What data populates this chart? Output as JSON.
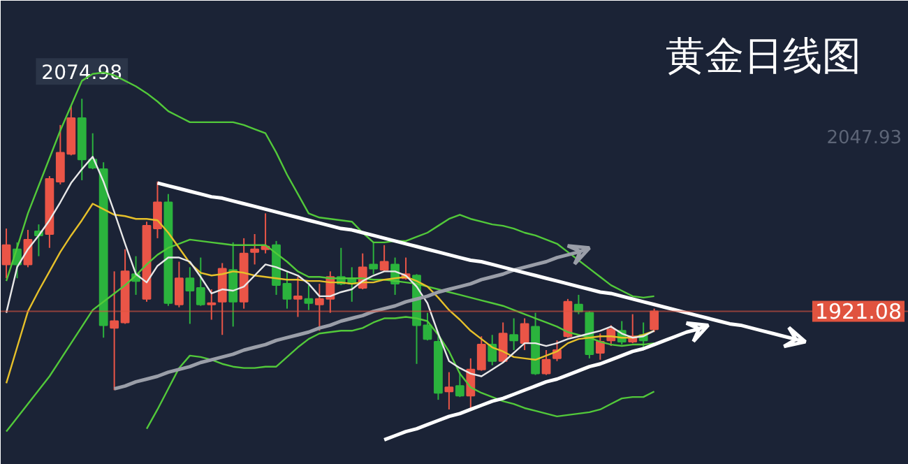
{
  "chart_data": {
    "type": "candlestick",
    "title": "黄金日线图",
    "tick_labels": "y",
    "categories": [
      null,
      null,
      null,
      null,
      null,
      null,
      null,
      null,
      null,
      null,
      null,
      null,
      null,
      null,
      null,
      null,
      null,
      null,
      null,
      null,
      null,
      null,
      null,
      null,
      null,
      null,
      null,
      null,
      null,
      null,
      null,
      null,
      null,
      null,
      null,
      null,
      null,
      null,
      null,
      null,
      null,
      null,
      null,
      null,
      null,
      null,
      null,
      null,
      null,
      null,
      null,
      null,
      null,
      null,
      null,
      null,
      null,
      null,
      null,
      null,
      null,
      null,
      null,
      null,
      null,
      null,
      null,
      null,
      null,
      null,
      null,
      null,
      null,
      null,
      null,
      null
    ],
    "ohlc": [
      [
        1955,
        1981,
        1945,
        1969
      ],
      [
        1966,
        1971,
        1945,
        1955
      ],
      [
        1955,
        1980,
        1953,
        1973
      ],
      [
        1979,
        1984,
        1961,
        1976
      ],
      [
        1977,
        2019,
        1967,
        2017
      ],
      [
        2015,
        2056,
        2013,
        2036
      ],
      [
        2035,
        2070,
        2034,
        2061
      ],
      [
        2061,
        2074.98,
        2016,
        2031
      ],
      [
        2031,
        2050,
        2024,
        2025
      ],
      [
        2024,
        2029,
        1902,
        1911
      ],
      [
        1909,
        1950,
        1864,
        1914
      ],
      [
        1913,
        1966,
        1912,
        1950
      ],
      [
        1948,
        1961,
        1933,
        1943
      ],
      [
        1930,
        1986,
        1928,
        1983
      ],
      [
        1981,
        2015,
        1974,
        2000
      ],
      [
        2000,
        2006,
        1925,
        1927
      ],
      [
        1926,
        1957,
        1924,
        1945
      ],
      [
        1945,
        1953,
        1912,
        1936
      ],
      [
        1938,
        1960,
        1925,
        1926
      ],
      [
        1926,
        1937,
        1915,
        1927
      ],
      [
        1928,
        1956,
        1904,
        1952
      ],
      [
        1951,
        1971,
        1910,
        1928
      ],
      [
        1928,
        1974,
        1923,
        1963
      ],
      [
        1964,
        1977,
        1955,
        1966
      ],
      [
        1966,
        1992,
        1963,
        1968
      ],
      [
        1969,
        1972,
        1933,
        1940
      ],
      [
        1941,
        1950,
        1923,
        1930
      ],
      [
        1930,
        1946,
        1917,
        1932
      ],
      [
        1930,
        1940,
        1922,
        1927
      ],
      [
        1926,
        1941,
        1907,
        1930
      ],
      [
        1930,
        1950,
        1920,
        1946
      ],
      [
        1946,
        1967,
        1940,
        1941
      ],
      [
        1945,
        1953,
        1928,
        1941
      ],
      [
        1938,
        1963,
        1937,
        1953
      ],
      [
        1955,
        1971,
        1948,
        1952
      ],
      [
        1951,
        1969,
        1950,
        1957
      ],
      [
        1955,
        1960,
        1933,
        1941
      ],
      [
        1945,
        1960,
        1944,
        1948
      ],
      [
        1947,
        1948,
        1883,
        1911
      ],
      [
        1911,
        1920,
        1900,
        1901
      ],
      [
        1899,
        1906,
        1857,
        1862
      ],
      [
        1863,
        1877,
        1850,
        1866
      ],
      [
        1867,
        1877,
        1859,
        1860
      ],
      [
        1860,
        1887,
        1850,
        1879
      ],
      [
        1879,
        1903,
        1878,
        1897
      ],
      [
        1897,
        1904,
        1882,
        1885
      ],
      [
        1885,
        1913,
        1884,
        1905
      ],
      [
        1904,
        1916,
        1893,
        1900
      ],
      [
        1898,
        1916,
        1893,
        1912
      ],
      [
        1910,
        1920,
        1875,
        1876
      ],
      [
        1876,
        1893,
        1875,
        1886
      ],
      [
        1887,
        1900,
        1885,
        1893
      ],
      [
        1903,
        1930,
        1902,
        1928
      ],
      [
        1926,
        1933,
        1919,
        1921
      ],
      [
        1920,
        1921,
        1887,
        1890
      ],
      [
        1891,
        1905,
        1886,
        1899
      ],
      [
        1900,
        1911,
        1896,
        1908
      ],
      [
        1907,
        1914,
        1897,
        1899
      ],
      [
        1899,
        1919,
        1898,
        1903
      ],
      [
        1904,
        1913,
        1895,
        1900
      ],
      [
        1908,
        1923,
        1906,
        1921.08
      ],
      null,
      null,
      null,
      null,
      null,
      null,
      null,
      null,
      null,
      null,
      null,
      null,
      null,
      null,
      null
    ],
    "colors": [
      "#ea5547",
      "#2bb33d",
      "#ea5547",
      "#2bb33d",
      "#ea5547",
      "#ea5547",
      "#ea5547",
      "#2bb33d",
      "#2bb33d",
      "#2bb33d",
      "#ea5547",
      "#ea5547",
      "#2bb33d",
      "#ea5547",
      "#ea5547",
      "#2bb33d",
      "#ea5547",
      "#2bb33d",
      "#2bb33d",
      "#ea5547",
      "#ea5547",
      "#2bb33d",
      "#ea5547",
      "#ea5547",
      "#ea5547",
      "#2bb33d",
      "#2bb33d",
      "#ea5547",
      "#2bb33d",
      "#ea5547",
      "#ea5547",
      "#2bb33d",
      "#2bb33d",
      "#ea5547",
      "#2bb33d",
      "#ea5547",
      "#2bb33d",
      "#ea5547",
      "#2bb33d",
      "#2bb33d",
      "#2bb33d",
      "#ea5547",
      "#2bb33d",
      "#ea5547",
      "#ea5547",
      "#2bb33d",
      "#ea5547",
      "#2bb33d",
      "#ea5547",
      "#2bb33d",
      "#ea5547",
      "#ea5547",
      "#ea5547",
      "#2bb33d",
      "#2bb33d",
      "#ea5547",
      "#ea5547",
      "#2bb33d",
      "#ea5547",
      "#2bb33d",
      "#ea5547",
      null,
      null,
      null,
      null,
      null,
      null,
      null,
      null,
      null,
      null,
      null,
      null,
      null,
      null,
      null
    ],
    "ylim": [
      1810,
      2146
    ],
    "yticks": [
      2047.93,
      1921.08
    ],
    "ref_lines": [
      {
        "axis": "y",
        "value": 1921.08,
        "color": "#e0533f"
      }
    ],
    "annotations": [
      {
        "text": "2074.98",
        "y": 2074.98
      }
    ],
    "series": [
      {
        "type": "line",
        "color": "#52c93a",
        "values": [
          1943,
          1967,
          1992,
          2012,
          2032,
          2052,
          2070,
          2088,
          2093,
          2094,
          2092,
          2088,
          2084,
          2079,
          2073,
          2066,
          2062,
          2058,
          2058,
          2058,
          2058,
          2058,
          2056,
          2053,
          2050,
          2036,
          2020,
          2006,
          1992,
          1989,
          1988,
          1987,
          1986,
          1978,
          1971,
          1971,
          1972,
          1972,
          1975,
          1978,
          1983,
          1988,
          1991,
          1988,
          1986,
          1984,
          1983,
          1981,
          1978,
          1976,
          1973,
          1970,
          1964,
          1958,
          1952,
          1946,
          1940,
          1936,
          1932,
          1931,
          1932,
          null,
          null,
          null,
          null,
          null,
          null,
          null,
          null,
          null,
          null,
          null,
          null,
          null,
          null,
          null
        ]
      },
      {
        "type": "line",
        "color": "#52c93a",
        "values": [
          1834,
          1844,
          1854,
          1864,
          1874,
          1886,
          1898,
          1910,
          1922,
          1928,
          1934,
          1940,
          1947,
          1955,
          1962,
          1967,
          1970,
          1973,
          1972,
          1971,
          1970,
          1969,
          1969,
          1969,
          1969,
          1963,
          1957,
          1950,
          1946,
          1946,
          1945,
          1945,
          1945,
          1945,
          1944,
          1944,
          1943,
          1942,
          1941,
          1939,
          1937,
          1935,
          1933,
          1931,
          1929,
          1927,
          1925,
          1922,
          1919,
          1916,
          1913,
          1910,
          1906,
          1904,
          1902,
          1899,
          1897,
          1896,
          1897,
          1897,
          1898,
          null,
          null,
          null,
          null,
          null,
          null,
          null,
          null,
          null,
          null,
          null,
          null,
          null,
          null,
          null
        ]
      },
      {
        "type": "line",
        "color": "#52c93a",
        "values": [
          null,
          null,
          null,
          null,
          null,
          null,
          null,
          null,
          null,
          null,
          null,
          null,
          null,
          1836,
          1850,
          1865,
          1880,
          1889,
          1888,
          1886,
          1883,
          1881,
          1880,
          1880,
          1881,
          1881,
          1888,
          1895,
          1901,
          1905,
          1906,
          1907,
          1907,
          1909,
          1913,
          1916,
          1916,
          1917,
          1916,
          1914,
          1904,
          1892,
          1876,
          1866,
          1862,
          1859,
          1856,
          1854,
          1851,
          1849,
          1847,
          1845,
          1846,
          1847,
          1848,
          1850,
          1854,
          1858,
          1859,
          1859,
          1863,
          null,
          null,
          null,
          null,
          null,
          null,
          null,
          null,
          null,
          null,
          null,
          null,
          null,
          null,
          null
        ]
      },
      {
        "type": "line",
        "color": "#e6c02a",
        "values": [
          1869,
          1895,
          1921,
          1936,
          1950,
          1964,
          1976,
          1987,
          1999,
          1995,
          1991,
          1990,
          1988,
          1988,
          1987,
          1978,
          1967,
          1956,
          1949,
          1947,
          1948,
          1950,
          1949,
          1947,
          1946,
          1945,
          1944,
          1944,
          1943,
          1943,
          1942,
          1942,
          1941,
          1942,
          1942,
          1944,
          1945,
          1946,
          1943,
          1939,
          1931,
          1922,
          1915,
          1907,
          1901,
          1895,
          1892,
          1888,
          1887,
          1886,
          1889,
          1892,
          1898,
          1901,
          1902,
          1903,
          1903,
          1902,
          1902,
          1904,
          1907,
          null,
          null,
          null,
          null,
          null,
          null,
          null,
          null,
          null,
          null,
          null,
          null,
          null,
          null,
          null
        ]
      },
      {
        "type": "line",
        "color": "#e8e8e8",
        "values": [
          1920,
          1953,
          1966,
          1976,
          1987,
          2000,
          2014,
          2024,
          2033,
          2015,
          1993,
          1970,
          1948,
          1942,
          1954,
          1960,
          1960,
          1957,
          1946,
          1934,
          1937,
          1936,
          1939,
          1947,
          1955,
          1953,
          1950,
          1947,
          1941,
          1932,
          1932,
          1935,
          1937,
          1943,
          1947,
          1950,
          1950,
          1947,
          1939,
          1927,
          1905,
          1885,
          1880,
          1876,
          1874,
          1879,
          1884,
          1891,
          1898,
          1898,
          1896,
          1898,
          1901,
          1903,
          1905,
          1907,
          1910,
          1905,
          1902,
          1903,
          1907,
          null,
          null,
          null,
          null,
          null,
          null,
          null,
          null,
          null,
          null,
          null,
          null,
          null,
          null,
          null
        ]
      },
      {
        "type": "line",
        "color": "#9a9ea8",
        "values": [
          null,
          null,
          null,
          null,
          null,
          null,
          null,
          null,
          null,
          null,
          1865,
          1867,
          1870,
          1872,
          1874,
          1877,
          1879,
          1881,
          1884,
          1886,
          1888,
          1890,
          1893,
          1895,
          1897,
          1900,
          1902,
          1904,
          1906,
          1909,
          1911,
          1914,
          1916,
          1918,
          1921,
          1923,
          1925,
          1928,
          1930,
          1932,
          1935,
          1937,
          1939,
          1941,
          1944,
          1946,
          1948,
          1951,
          1953,
          1955,
          1957,
          1960,
          1962,
          1964,
          1967,
          null,
          null,
          null,
          null,
          null,
          null,
          null,
          null,
          null,
          null,
          null,
          null,
          null,
          null,
          null,
          null,
          null,
          null,
          null,
          null,
          null
        ]
      },
      {
        "type": "line",
        "color": "#ffffff",
        "values": [
          null,
          null,
          null,
          null,
          null,
          null,
          null,
          null,
          null,
          null,
          null,
          null,
          null,
          null,
          2014,
          2012,
          2010,
          2008,
          2006,
          2004,
          2003,
          2001,
          1999,
          1997,
          1995,
          1993,
          1991,
          1989,
          1987,
          1985,
          1983,
          1981,
          1980,
          1978,
          1976,
          1974,
          1972,
          1970,
          1968,
          1966,
          1964,
          1962,
          1960,
          1958,
          1957,
          1955,
          1953,
          1951,
          1949,
          1947,
          1945,
          1943,
          1941,
          1939,
          1937,
          1935,
          1934,
          1932,
          1930,
          1928,
          1926,
          1924,
          1922,
          1920,
          1918,
          1916,
          1914,
          1912,
          1911,
          1909,
          1907,
          1905,
          1903,
          1901,
          1899,
          null
        ]
      },
      {
        "type": "line",
        "color": "#ffffff",
        "values": [
          null,
          null,
          null,
          null,
          null,
          null,
          null,
          null,
          null,
          null,
          null,
          null,
          null,
          null,
          null,
          null,
          null,
          null,
          null,
          null,
          null,
          null,
          null,
          null,
          null,
          null,
          null,
          null,
          null,
          null,
          null,
          null,
          null,
          null,
          null,
          1828,
          1831,
          1834,
          1836,
          1839,
          1842,
          1845,
          1847,
          1850,
          1853,
          1856,
          1858,
          1861,
          1864,
          1867,
          1870,
          1872,
          1875,
          1878,
          1881,
          1883,
          1886,
          1889,
          1892,
          1894,
          1897,
          1900,
          1903,
          1906,
          1908,
          1911,
          null,
          null,
          null,
          null,
          null,
          null,
          null,
          null,
          null,
          null
        ]
      }
    ]
  }
}
